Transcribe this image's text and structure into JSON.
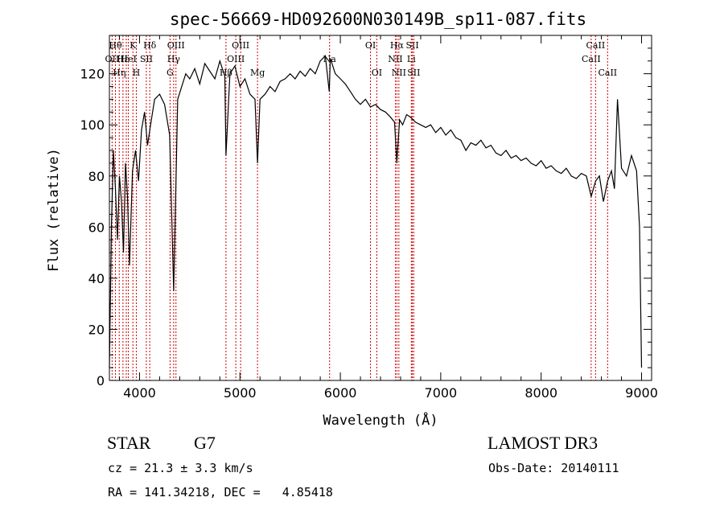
{
  "chart_data": {
    "type": "line",
    "title": "spec-56669-HD092600N030149B_sp11-087.fits",
    "xlabel": "Wavelength (Å)",
    "ylabel": "Flux (relative)",
    "xlim": [
      3700,
      9100
    ],
    "ylim": [
      0,
      135
    ],
    "xticks": [
      4000,
      5000,
      6000,
      7000,
      8000,
      9000
    ],
    "yticks": [
      0,
      20,
      40,
      60,
      80,
      100,
      120
    ],
    "grid": false,
    "line_color": "#000000",
    "marker_color": "#cc0000",
    "series": [
      {
        "x": [
          3700,
          3720,
          3740,
          3760,
          3780,
          3800,
          3820,
          3840,
          3860,
          3880,
          3900,
          3930,
          3960,
          3990,
          4020,
          4050,
          4080,
          4110,
          4150,
          4200,
          4250,
          4300,
          4340,
          4380,
          4420,
          4460,
          4500,
          4550,
          4600,
          4650,
          4700,
          4750,
          4800,
          4850,
          4861,
          4900,
          4950,
          5000,
          5050,
          5100,
          5150,
          5175,
          5200,
          5250,
          5300,
          5350,
          5400,
          5450,
          5500,
          5550,
          5600,
          5650,
          5700,
          5750,
          5800,
          5850,
          5890,
          5900,
          5950,
          6000,
          6050,
          6100,
          6150,
          6200,
          6250,
          6300,
          6350,
          6400,
          6450,
          6500,
          6540,
          6563,
          6590,
          6620,
          6660,
          6700,
          6750,
          6800,
          6850,
          6900,
          6950,
          7000,
          7050,
          7100,
          7150,
          7200,
          7250,
          7300,
          7350,
          7400,
          7450,
          7500,
          7550,
          7600,
          7650,
          7700,
          7750,
          7800,
          7850,
          7900,
          7950,
          8000,
          8050,
          8100,
          8150,
          8200,
          8250,
          8300,
          8350,
          8400,
          8450,
          8498,
          8542,
          8580,
          8620,
          8662,
          8700,
          8730,
          8760,
          8800,
          8850,
          8900,
          8950,
          8980,
          9000
        ],
        "y": [
          5,
          60,
          90,
          75,
          55,
          80,
          70,
          50,
          85,
          72,
          45,
          82,
          90,
          78,
          98,
          105,
          92,
          100,
          110,
          112,
          108,
          96,
          35,
          110,
          115,
          120,
          118,
          122,
          116,
          124,
          121,
          118,
          125,
          119,
          88,
          120,
          123,
          115,
          118,
          112,
          110,
          85,
          110,
          112,
          115,
          113,
          117,
          118,
          120,
          118,
          121,
          119,
          122,
          120,
          125,
          127,
          113,
          126,
          120,
          118,
          116,
          113,
          110,
          108,
          110,
          107,
          108,
          106,
          105,
          103,
          101,
          85,
          102,
          100,
          104,
          103,
          101,
          100,
          99,
          100,
          97,
          99,
          96,
          98,
          95,
          94,
          90,
          93,
          92,
          94,
          91,
          92,
          89,
          88,
          90,
          87,
          88,
          86,
          87,
          85,
          84,
          86,
          83,
          84,
          82,
          81,
          83,
          80,
          79,
          81,
          80,
          72,
          78,
          80,
          70,
          78,
          82,
          75,
          110,
          83,
          80,
          88,
          82,
          60,
          5
        ]
      }
    ],
    "line_markers": [
      {
        "x": 3727,
        "label": "OII",
        "row": 1
      },
      {
        "x": 3760,
        "label": "Hθ",
        "row": 0
      },
      {
        "x": 3798,
        "label": "Hη",
        "row": 2
      },
      {
        "x": 3835,
        "label": "Hε",
        "row": 1
      },
      {
        "x": 3868,
        "label": "",
        "row": 0
      },
      {
        "x": 3889,
        "label": "HeI",
        "row": 1
      },
      {
        "x": 3934,
        "label": "K",
        "row": 0
      },
      {
        "x": 3968,
        "label": "H",
        "row": 2
      },
      {
        "x": 4068,
        "label": "SII",
        "row": 1
      },
      {
        "x": 4102,
        "label": "Hδ",
        "row": 0
      },
      {
        "x": 4304,
        "label": "G",
        "row": 2
      },
      {
        "x": 4340,
        "label": "Hγ",
        "row": 1
      },
      {
        "x": 4363,
        "label": "OIII",
        "row": 0
      },
      {
        "x": 4861,
        "label": "Hβ",
        "row": 2
      },
      {
        "x": 4959,
        "label": "OIII",
        "row": 1
      },
      {
        "x": 5007,
        "label": "OIII",
        "row": 0
      },
      {
        "x": 5175,
        "label": "Mg",
        "row": 2
      },
      {
        "x": 5893,
        "label": "Na",
        "row": 1
      },
      {
        "x": 6300,
        "label": "OI",
        "row": 0
      },
      {
        "x": 6363,
        "label": "OI",
        "row": 2
      },
      {
        "x": 6548,
        "label": "NII",
        "row": 1
      },
      {
        "x": 6563,
        "label": "Hα",
        "row": 0
      },
      {
        "x": 6583,
        "label": "NII",
        "row": 2
      },
      {
        "x": 6707,
        "label": "Li",
        "row": 1
      },
      {
        "x": 6717,
        "label": "SII",
        "row": 0
      },
      {
        "x": 6731,
        "label": "SII",
        "row": 2
      },
      {
        "x": 8498,
        "label": "CaII",
        "row": 1
      },
      {
        "x": 8542,
        "label": "CaII",
        "row": 0
      },
      {
        "x": 8662,
        "label": "CaII",
        "row": 2
      }
    ]
  },
  "info": {
    "object_class": "STAR",
    "subclass": "G7",
    "survey": "LAMOST DR3",
    "redshift": "cz = 21.3 ± 3.3 km/s",
    "obs_date": "Obs-Date: 20140111",
    "coords": "RA = 141.34218, DEC =   4.85418"
  }
}
